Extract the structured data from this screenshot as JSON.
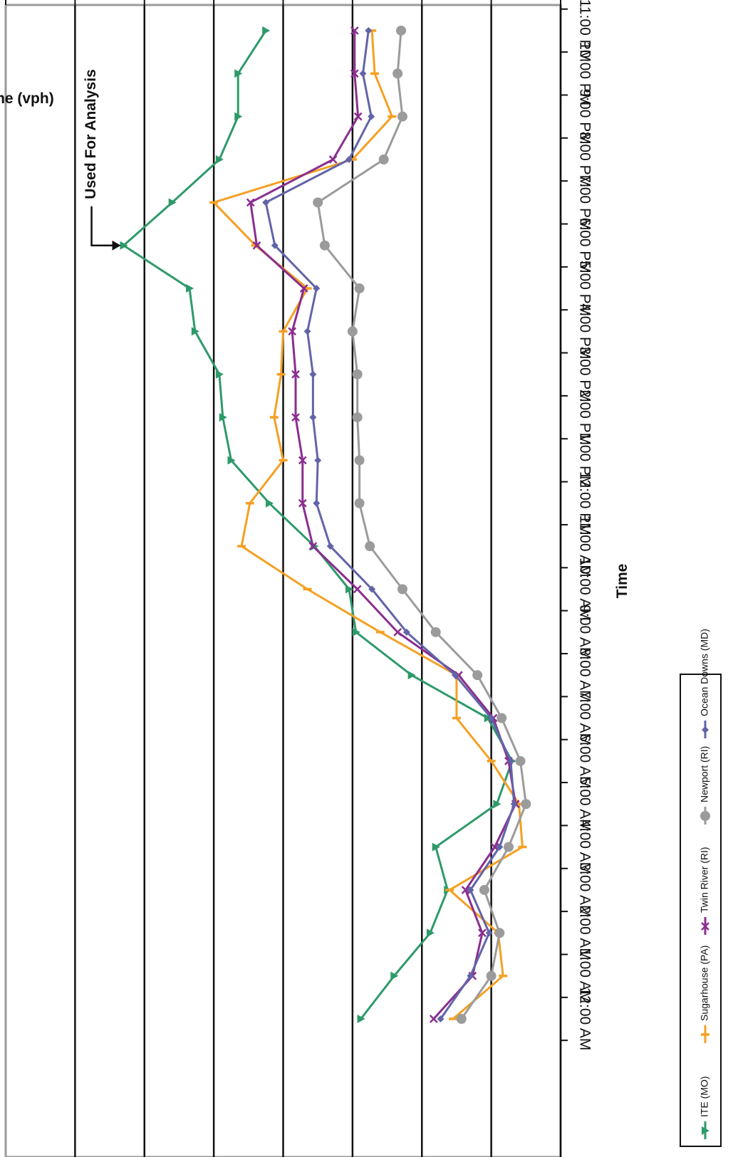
{
  "chart_data": {
    "type": "line",
    "title": "",
    "xlabel": "Time",
    "ylabel": "Volume (vph)",
    "ylim": [
      0,
      800
    ],
    "yticks": [
      0,
      100,
      200,
      300,
      400,
      500,
      600,
      700,
      800
    ],
    "grid": "horizontal",
    "legend_position": "bottom",
    "categories": [
      "12:00 AM",
      "1:00 AM",
      "2:00 AM",
      "3:00 AM",
      "4:00 AM",
      "5:00 AM",
      "6:00 AM",
      "7:00 AM",
      "8:00 AM",
      "9:00 AM",
      "10:00 AM",
      "11:00 AM",
      "12:00 PM",
      "1:00 PM",
      "2:00 PM",
      "3:00 PM",
      "4:00 PM",
      "5:00 PM",
      "6:00 PM",
      "7:00 PM",
      "8:00 PM",
      "9:00 PM",
      "10:00 PM",
      "11:00 PM"
    ],
    "annotation": {
      "text": "Used For Analysis",
      "series": "ITE (MO)",
      "category": "6:00 PM"
    },
    "series": [
      {
        "name": "ITE (MO)",
        "color": "#2e9a6a",
        "marker": "triangle",
        "values": [
          288,
          240,
          188,
          163,
          180,
          92,
          70,
          105,
          215,
          295,
          305,
          355,
          420,
          475,
          487,
          492,
          527,
          535,
          630,
          560,
          492,
          465,
          465,
          425
        ]
      },
      {
        "name": "Sugarhouse (PA)",
        "color": "#f5a023",
        "marker": "dash",
        "values": [
          155,
          83,
          90,
          160,
          55,
          60,
          100,
          150,
          150,
          260,
          365,
          460,
          448,
          400,
          413,
          403,
          400,
          365,
          440,
          500,
          300,
          243,
          268,
          272
        ]
      },
      {
        "name": "Twin River (RI)",
        "color": "#8a2e8f",
        "marker": "x",
        "values": [
          183,
          127,
          113,
          137,
          95,
          65,
          75,
          97,
          147,
          235,
          293,
          357,
          372,
          372,
          382,
          382,
          387,
          370,
          438,
          447,
          328,
          292,
          297,
          297
        ]
      },
      {
        "name": "Newport (RI)",
        "color": "#9b9b9b",
        "marker": "circle",
        "values": [
          143,
          100,
          88,
          110,
          75,
          50,
          58,
          85,
          120,
          180,
          228,
          275,
          290,
          290,
          293,
          293,
          300,
          290,
          340,
          350,
          255,
          228,
          235,
          230
        ]
      },
      {
        "name": "Ocean Downs (MD)",
        "color": "#6264a8",
        "marker": "diamond",
        "values": [
          173,
          130,
          103,
          130,
          88,
          67,
          72,
          100,
          152,
          222,
          272,
          332,
          352,
          350,
          357,
          357,
          365,
          352,
          412,
          425,
          305,
          273,
          285,
          277
        ]
      }
    ]
  }
}
